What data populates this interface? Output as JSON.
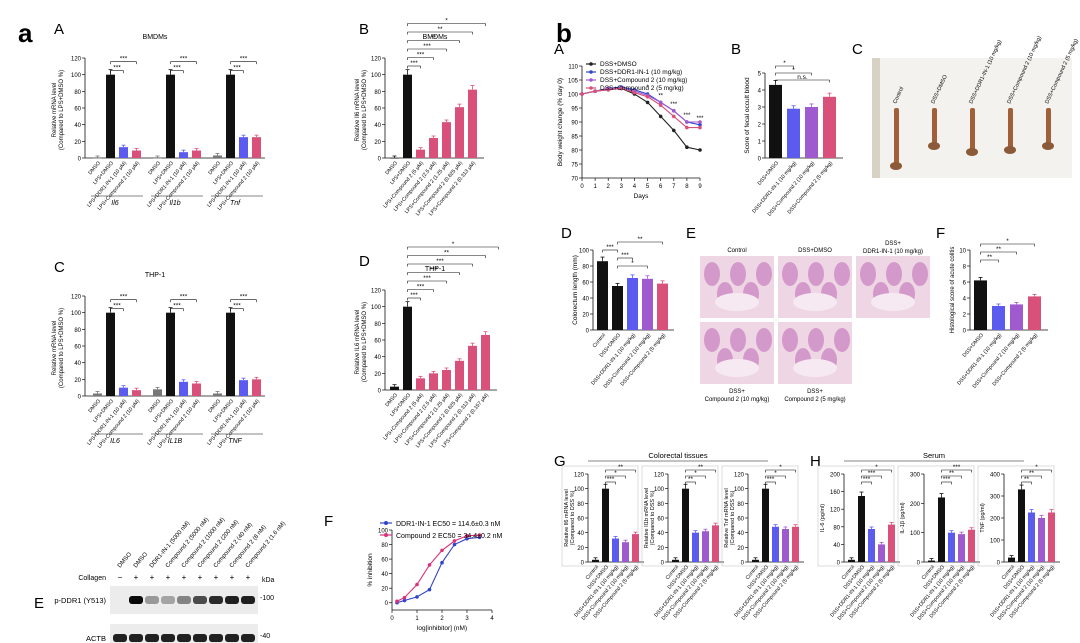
{
  "figure": {
    "labels": {
      "a": "a",
      "b": "b"
    },
    "colors": {
      "black": "#111111",
      "blue": "#5b5bf0",
      "pink": "#d9507a",
      "purple": "#a05ad0",
      "navy": "#222266"
    }
  },
  "panels": {
    "a_A": {
      "letter": "A",
      "chart_data": {
        "type": "bar",
        "title": "BMDMs",
        "ylabel": "Relative mRNA level",
        "ylabel2": "(Compared to LPS+DMSO %)",
        "ylim": [
          0,
          120
        ],
        "yticks": [
          "0",
          "20",
          "40",
          "60",
          "80",
          "100",
          "120"
        ],
        "categories": [
          "DMSO",
          "LPS+DMSO",
          "LPS+DDR1-IN-1 (10 μM)",
          "LPS+Compound 2 (10 μM)"
        ],
        "groups": [
          {
            "gene": "Il6",
            "values": [
              0,
              100,
              13,
              9
            ],
            "sig": [
              "***",
              "***"
            ]
          },
          {
            "gene": "Il1b",
            "values": [
              0,
              100,
              7,
              9
            ],
            "sig": [
              "***",
              "***"
            ]
          },
          {
            "gene": "Tnf",
            "values": [
              3,
              100,
              25,
              25
            ],
            "sig": [
              "***",
              "***"
            ]
          }
        ]
      }
    },
    "a_C": {
      "letter": "C",
      "chart_data": {
        "type": "bar",
        "title": "THP-1",
        "ylabel": "Relative mRNA level",
        "ylabel2": "(Compared to LPS+DMSO %)",
        "ylim": [
          0,
          120
        ],
        "yticks": [
          "0",
          "20",
          "40",
          "60",
          "80",
          "100",
          "120"
        ],
        "categories": [
          "DMSO",
          "LPS+DMSO",
          "LPS+DDR1-IN-1 (10 μM)",
          "LPS+Compound 2 (10 μM)"
        ],
        "groups": [
          {
            "gene": "IL6",
            "values": [
              3,
              100,
              10,
              7
            ],
            "sig": [
              "***",
              "***"
            ]
          },
          {
            "gene": "IL1B",
            "values": [
              8,
              100,
              17,
              15
            ],
            "sig": [
              "***",
              "***"
            ]
          },
          {
            "gene": "TNF",
            "values": [
              3,
              100,
              19,
              20
            ],
            "sig": [
              "***",
              "***"
            ]
          }
        ]
      }
    },
    "a_B": {
      "letter": "B",
      "chart_data": {
        "type": "bar",
        "title": "BMDMs",
        "ylabel": "Relative Il6 mRNA level",
        "ylabel2": "(Compared to LPS+DMSO %)",
        "ylim": [
          0,
          120
        ],
        "yticks": [
          "0",
          "20",
          "40",
          "60",
          "80",
          "100",
          "120"
        ],
        "categories": [
          "DMSO",
          "LPS+DMSO",
          "LPS+Compound 2 (5 μM)",
          "LPS+Compound 2 (2.5 μM)",
          "LPS+Compound 2 (1.25 μM)",
          "LPS+Compound 2 (0.625 μM)",
          "LPS+Compound 2 (0.313 μM)"
        ],
        "values": [
          0,
          100,
          10,
          24,
          43,
          61,
          82
        ],
        "sig": [
          "***",
          "***",
          "***",
          "**",
          "**",
          "*"
        ]
      }
    },
    "a_D": {
      "letter": "D",
      "chart_data": {
        "type": "bar",
        "title": "THP-1",
        "ylabel": "Relative IL6 mRNA level",
        "ylabel2": "(Compared to LPS+DMSO %)",
        "ylim": [
          0,
          120
        ],
        "yticks": [
          "0",
          "20",
          "40",
          "60",
          "80",
          "100",
          "120"
        ],
        "categories": [
          "DMSO",
          "LPS+DMSO",
          "LPS+Compound 2 (5 μM)",
          "LPS+Compound 2 (2.5 μM)",
          "LPS+Compound 2 (1.25 μM)",
          "LPS+Compound 2 (0.625 μM)",
          "LPS+Compound 2 (0.313 μM)",
          "LPS+Compound 2 (0.157 μM)"
        ],
        "values": [
          4,
          100,
          14,
          20,
          24,
          35,
          53,
          66
        ],
        "sig": [
          "***",
          "***",
          "***",
          "***",
          "***",
          "**",
          "*"
        ]
      }
    },
    "a_E": {
      "letter": "E",
      "collagen_label": "Collagen",
      "collagen_signs": [
        "−",
        "+",
        "+",
        "+",
        "+",
        "+",
        "+",
        "+",
        "+"
      ],
      "lanes": [
        "DMSO",
        "DMSO",
        "DDR1-IN-1 (5000 nM)",
        "Compound 2 (5000 nM)",
        "Compound 2 (1000 nM)",
        "Compound 2 (200 nM)",
        "Compound 2 (40 nM)",
        "Compound 2 (8 nM)",
        "Compound 2 (1.6 nM)"
      ],
      "rows": [
        {
          "label": "p-DDR1 (Y513)",
          "intensity": [
            0,
            1,
            0.35,
            0.3,
            0.45,
            0.7,
            0.85,
            0.9,
            0.9
          ]
        },
        {
          "label": "ACTB",
          "intensity": [
            0.9,
            0.9,
            0.9,
            0.9,
            0.9,
            0.9,
            0.9,
            0.9,
            0.9
          ]
        }
      ],
      "markers": [
        "kDa",
        "-100",
        "-40"
      ]
    },
    "a_F": {
      "letter": "F",
      "chart_data": {
        "type": "line",
        "xlabel": "log[inhibitor] (nM)",
        "ylabel": "% inhibition",
        "xlim": [
          0,
          4
        ],
        "ylim": [
          -10,
          100
        ],
        "xticks": [
          "0",
          "1",
          "2",
          "3",
          "4"
        ],
        "yticks": [
          "0",
          "20",
          "40",
          "60",
          "80",
          "100"
        ],
        "series": [
          {
            "name": "DDR1-IN-1 EC50 = 114.6±0.3 nM",
            "color": "#3344cc",
            "x": [
              0.2,
              0.5,
              1.0,
              1.5,
              2.0,
              2.5,
              3.0,
              3.5
            ],
            "y": [
              0,
              3,
              8,
              18,
              55,
              80,
              88,
              90
            ]
          },
          {
            "name": "Compound 2 EC50 = 34.4±0.2 nM",
            "color": "#d9307a",
            "x": [
              0.2,
              0.5,
              1.0,
              1.5,
              2.0,
              2.5,
              3.0,
              3.5
            ],
            "y": [
              2,
              7,
              25,
              52,
              72,
              85,
              92,
              93
            ]
          }
        ]
      }
    },
    "b_A": {
      "letter": "A",
      "chart_data": {
        "type": "line",
        "xlabel": "Days",
        "ylabel": "Body weight change (% day 0)",
        "xlim": [
          0,
          9
        ],
        "ylim": [
          70,
          110
        ],
        "xticks": [
          "0",
          "1",
          "2",
          "3",
          "4",
          "5",
          "6",
          "7",
          "8",
          "9"
        ],
        "yticks": [
          "70",
          "75",
          "80",
          "85",
          "90",
          "95",
          "100",
          "105",
          "110"
        ],
        "series": [
          {
            "name": "DSS+DMSO",
            "color": "#222222",
            "x": [
              0,
              1,
              2,
              3,
              4,
              5,
              6,
              7,
              8,
              9
            ],
            "y": [
              100,
              101,
              101.5,
              102,
              100,
              97,
              92,
              87,
              81,
              80
            ]
          },
          {
            "name": "DSS+DDR1-IN-1 (10 mg/kg)",
            "color": "#3344cc",
            "x": [
              0,
              1,
              2,
              3,
              4,
              5,
              6,
              7,
              8,
              9
            ],
            "y": [
              100,
              101,
              102,
              102.5,
              101.5,
              100,
              97,
              94,
              90,
              89
            ]
          },
          {
            "name": "DSS+Compound 2 (10 mg/kg)",
            "color": "#a05ad0",
            "x": [
              0,
              1,
              2,
              3,
              4,
              5,
              6,
              7,
              8,
              9
            ],
            "y": [
              100,
              101,
              102,
              102,
              101,
              99.5,
              97,
              94,
              90,
              90
            ]
          },
          {
            "name": "DSS+Compound 2 (5 mg/kg)",
            "color": "#d9507a",
            "x": [
              0,
              1,
              2,
              3,
              4,
              5,
              6,
              7,
              8,
              9
            ],
            "y": [
              100,
              101,
              101.5,
              102,
              100.5,
              99,
              96,
              92,
              88,
              88
            ]
          }
        ],
        "annotations": [
          "*",
          "**",
          "***",
          "***",
          "***"
        ]
      }
    },
    "b_B": {
      "letter": "B",
      "chart_data": {
        "type": "bar",
        "ylabel": "Score of fecal occult blood",
        "ylim": [
          0,
          5
        ],
        "yticks": [
          "0",
          "1",
          "2",
          "3",
          "4",
          "5"
        ],
        "categories": [
          "DSS+DMSO",
          "DSS+DDR1-IN-1 (10 mg/kg)",
          "DSS+Compound 2 (10 mg/kg)",
          "DSS+Compound 2 (5 mg/kg)"
        ],
        "values": [
          4.3,
          2.9,
          3.0,
          3.6
        ],
        "sig": [
          "*",
          "*",
          "n.s."
        ]
      }
    },
    "b_C": {
      "letter": "C",
      "labels": [
        "Control",
        "DSS+DMSO",
        "DSS+DDR1-IN-1 (10 mg/kg)",
        "DSS+Compound 2 (10 mg/kg)",
        "DSS+Compound 2 (5 mg/kg)"
      ]
    },
    "b_D": {
      "letter": "D",
      "chart_data": {
        "type": "bar",
        "ylabel": "Colorectum length (mm)",
        "ylim": [
          0,
          100
        ],
        "yticks": [
          "0",
          "20",
          "40",
          "60",
          "80",
          "100"
        ],
        "categories": [
          "Control",
          "DSS+DMSO",
          "DSS+DDR1-IN-1 (10 mg/kg)",
          "DSS+Compound 2 (10 mg/kg)",
          "DSS+Compound 2 (5 mg/kg)"
        ],
        "values": [
          86,
          55,
          65,
          64,
          58
        ],
        "sig": [
          "***",
          "***",
          "*",
          "**"
        ]
      }
    },
    "b_E": {
      "letter": "E",
      "labels": [
        "Control",
        "DSS+DMSO",
        "DSS+",
        "DDR1-IN-1 (10 mg/kg)",
        "DSS+",
        "Compound 2 (10 mg/kg)",
        "DSS+",
        "Compound 2 (5 mg/kg)"
      ]
    },
    "b_F": {
      "letter": "F",
      "chart_data": {
        "type": "bar",
        "ylabel": "Histological score of acute colitis",
        "ylim": [
          0,
          10
        ],
        "yticks": [
          "0",
          "2",
          "4",
          "6",
          "8",
          "10"
        ],
        "categories": [
          "DSS+DMSO",
          "DSS+DDR1-IN-1 (10 mg/kg)",
          "DSS+Compound 2 (10 mg/kg)",
          "DSS+Compound 2 (5 mg/kg)"
        ],
        "values": [
          6.2,
          3.0,
          3.2,
          4.2
        ],
        "sig": [
          "**",
          "**",
          "*"
        ]
      }
    },
    "b_G": {
      "letter": "G",
      "title": "Colorectal tissues",
      "categories": [
        "Control",
        "DSS+DMSO",
        "DSS+DDR1-IN-1 (10 mg/kg)",
        "DSS+Compound 2 (10 mg/kg)",
        "DSS+Compound 2 (5 mg/kg)"
      ],
      "chart_data": [
        {
          "type": "bar",
          "ylabel": "Relative Il6 mRNA level",
          "ylabel2": "(Compared to DSS %)",
          "ylim": [
            0,
            120
          ],
          "yticks": [
            "0",
            "20",
            "40",
            "60",
            "80",
            "100",
            "120"
          ],
          "values": [
            3,
            100,
            32,
            27,
            38
          ],
          "sig": [
            "***",
            "*",
            "**"
          ]
        },
        {
          "type": "bar",
          "ylabel": "Relative Il1b mRNA level",
          "ylabel2": "(Compared to DSS %)",
          "ylim": [
            0,
            120
          ],
          "yticks": [
            "0",
            "20",
            "40",
            "60",
            "80",
            "100",
            "120"
          ],
          "values": [
            3,
            100,
            40,
            42,
            50
          ],
          "sig": [
            "**",
            "*",
            "**"
          ]
        },
        {
          "type": "bar",
          "ylabel": "Relative Tnf mRNA level",
          "ylabel2": "(Compared to DSS %)",
          "ylim": [
            0,
            120
          ],
          "yticks": [
            "0",
            "20",
            "40",
            "60",
            "80",
            "100",
            "120"
          ],
          "values": [
            3,
            100,
            48,
            45,
            48
          ],
          "sig": [
            "***",
            "*",
            "*"
          ]
        }
      ]
    },
    "b_H": {
      "letter": "H",
      "title": "Serum",
      "categories": [
        "Control",
        "DSS+DMSO",
        "DSS+DDR1-IN-1 (10 mg/kg)",
        "DSS+Compound 2 (10 mg/kg)",
        "DSS+Compound 2 (5 mg/kg)"
      ],
      "chart_data": [
        {
          "type": "bar",
          "ylabel": "IL-6 (pg/ml)",
          "ylim": [
            0,
            200
          ],
          "yticks": [
            "0",
            "40",
            "80",
            "120",
            "160",
            "200"
          ],
          "values": [
            5,
            150,
            75,
            40,
            85
          ],
          "sig": [
            "***",
            "***",
            "*"
          ]
        },
        {
          "type": "bar",
          "ylabel": "IL-1β (pg/ml)",
          "ylim": [
            0,
            300
          ],
          "yticks": [
            "0",
            "100",
            "200",
            "300"
          ],
          "values": [
            5,
            220,
            100,
            95,
            110
          ],
          "sig": [
            "***",
            "**",
            "***"
          ]
        },
        {
          "type": "bar",
          "ylabel": "TNF (pg/ml)",
          "ylim": [
            0,
            400
          ],
          "yticks": [
            "0",
            "100",
            "200",
            "300",
            "400"
          ],
          "values": [
            20,
            330,
            225,
            200,
            225
          ],
          "sig": [
            "**",
            "**",
            "*"
          ]
        }
      ]
    }
  }
}
